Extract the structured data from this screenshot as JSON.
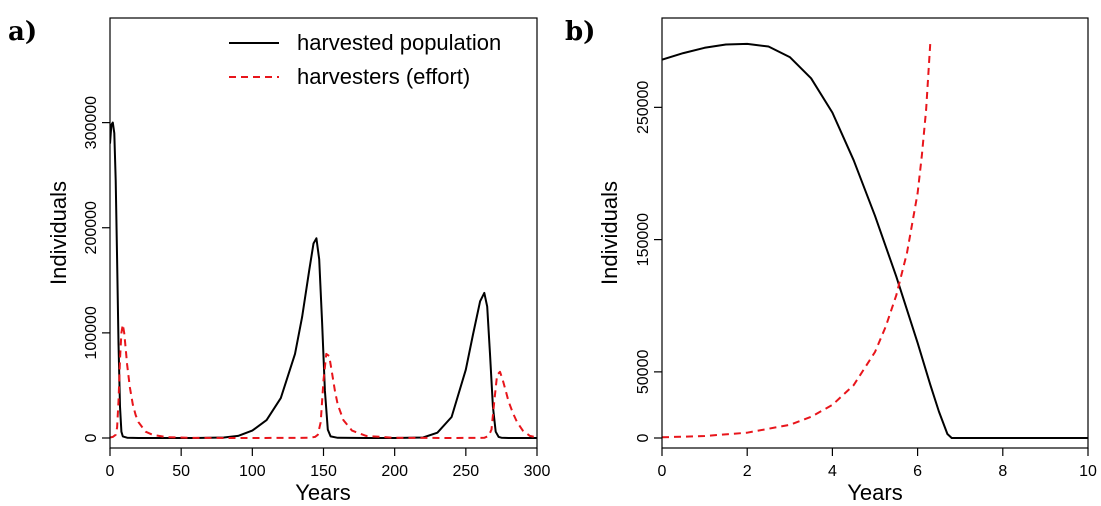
{
  "chart_data": [
    {
      "panel": "a)",
      "type": "line",
      "xlabel": "Years",
      "ylabel": "Individuals",
      "xlim": [
        0,
        300
      ],
      "ylim": [
        0,
        390000
      ],
      "xticks": [
        0,
        50,
        100,
        150,
        200,
        250,
        300
      ],
      "yticks": [
        0,
        100000,
        200000,
        300000
      ],
      "xtick_labels": [
        "0",
        "50",
        "100",
        "150",
        "200",
        "250",
        "300"
      ],
      "ytick_labels": [
        "0",
        "100000",
        "200000",
        "300000"
      ],
      "legend": {
        "position": "top-right",
        "entries": [
          "harvested population",
          "harvesters (effort)"
        ]
      },
      "series": [
        {
          "name": "harvested population",
          "color": "#000000",
          "style": "solid",
          "x": [
            0,
            1,
            2,
            3,
            4,
            5,
            6,
            7,
            8,
            9,
            12,
            20,
            40,
            60,
            80,
            90,
            100,
            110,
            120,
            130,
            135,
            140,
            143,
            145,
            147,
            149,
            151,
            153,
            155,
            160,
            180,
            200,
            220,
            230,
            240,
            250,
            255,
            260,
            263,
            265,
            267,
            269,
            271,
            273,
            275,
            280,
            300
          ],
          "y": [
            280000,
            298000,
            300000,
            290000,
            245000,
            170000,
            90000,
            30000,
            6000,
            1500,
            300,
            0,
            0,
            0,
            500,
            2000,
            7000,
            17000,
            38000,
            80000,
            115000,
            160000,
            185000,
            190000,
            170000,
            110000,
            45000,
            8000,
            1500,
            200,
            0,
            0,
            500,
            5000,
            20000,
            65000,
            98000,
            130000,
            138000,
            125000,
            80000,
            30000,
            6000,
            1000,
            300,
            0,
            0
          ]
        },
        {
          "name": "harvesters (effort)",
          "color": "#e8151b",
          "style": "dashed",
          "x": [
            0,
            2,
            4,
            5,
            6,
            7,
            8,
            9,
            10,
            11,
            12,
            14,
            16,
            18,
            20,
            25,
            30,
            40,
            60,
            100,
            140,
            144,
            146,
            148,
            150,
            152,
            154,
            156,
            158,
            160,
            164,
            170,
            180,
            200,
            240,
            263,
            266,
            268,
            270,
            272,
            274,
            276,
            278,
            280,
            283,
            286,
            290,
            295,
            300
          ],
          "y": [
            500,
            1000,
            3000,
            10000,
            35000,
            75000,
            100000,
            108000,
            100000,
            85000,
            70000,
            48000,
            32000,
            22000,
            15000,
            6000,
            3000,
            800,
            100,
            0,
            200,
            1000,
            3000,
            15000,
            55000,
            80000,
            78000,
            62000,
            45000,
            32000,
            17000,
            7000,
            2000,
            200,
            0,
            200,
            2000,
            8000,
            35000,
            60000,
            63000,
            55000,
            45000,
            35000,
            24000,
            15000,
            7000,
            2000,
            500
          ]
        }
      ]
    },
    {
      "panel": "b)",
      "type": "line",
      "xlabel": "Years",
      "ylabel": "Individuals",
      "xlim": [
        0,
        10
      ],
      "ylim": [
        0,
        310000
      ],
      "xticks": [
        0,
        2,
        4,
        6,
        8,
        10
      ],
      "yticks": [
        0,
        50000,
        150000,
        250000
      ],
      "xtick_labels": [
        "0",
        "2",
        "4",
        "6",
        "8",
        "10"
      ],
      "ytick_labels": [
        "0",
        "50000",
        "150000",
        "250000"
      ],
      "series": [
        {
          "name": "harvested population",
          "color": "#000000",
          "style": "solid",
          "x": [
            0,
            0.5,
            1,
            1.5,
            2,
            2.5,
            3,
            3.5,
            4,
            4.5,
            5,
            5.5,
            6,
            6.3,
            6.5,
            6.7,
            6.8,
            7,
            8,
            9,
            10
          ],
          "y": [
            286000,
            291000,
            295000,
            297500,
            298000,
            296000,
            288000,
            272000,
            246000,
            210000,
            168000,
            122000,
            72000,
            40000,
            20000,
            3000,
            0,
            0,
            0,
            0,
            0
          ]
        },
        {
          "name": "harvesters (effort)",
          "color": "#e8151b",
          "style": "dashed",
          "x": [
            0,
            1,
            2,
            3,
            3.5,
            4,
            4.5,
            5,
            5.25,
            5.5,
            5.75,
            6,
            6.1,
            6.2,
            6.3
          ],
          "y": [
            500,
            1500,
            4000,
            10000,
            16000,
            25000,
            40000,
            65000,
            84000,
            108000,
            140000,
            185000,
            214000,
            248000,
            300000
          ]
        }
      ]
    }
  ]
}
